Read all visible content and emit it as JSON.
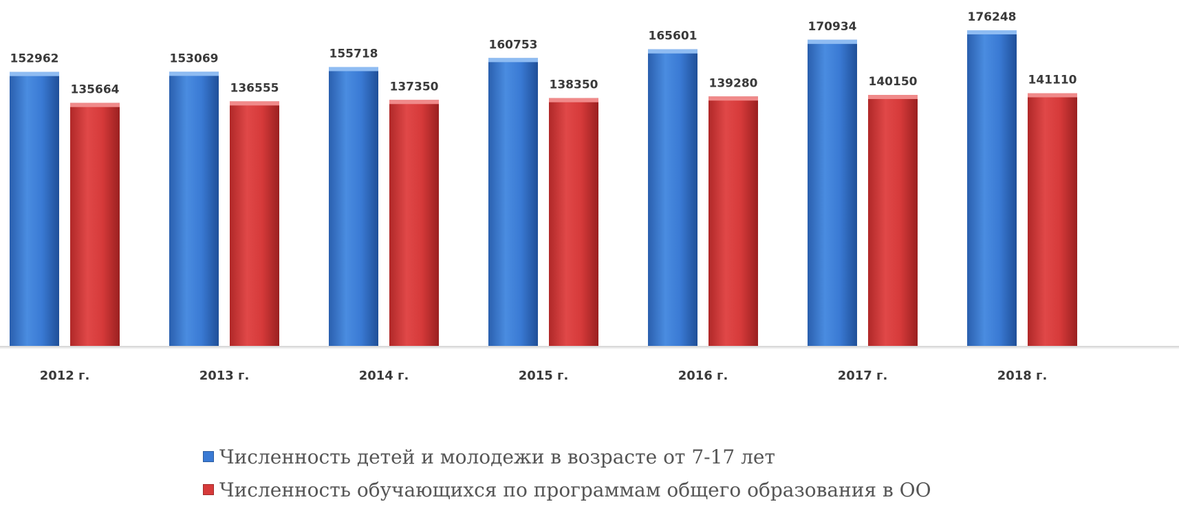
{
  "chart_data": {
    "type": "bar",
    "categories": [
      "2012 г.",
      "2013 г.",
      "2014 г.",
      "2015 г.",
      "2016 г.",
      "2017 г.",
      "2018 г."
    ],
    "series": [
      {
        "name": "Численность детей и молодежи в возрасте от 7-17 лет",
        "color": "#3a7ad4",
        "values": [
          152962,
          153069,
          155718,
          160753,
          165601,
          170934,
          176248
        ]
      },
      {
        "name": "Численность обучающихся по программам общего образования в ОО",
        "color": "#d63a3a",
        "values": [
          135664,
          136555,
          137350,
          138350,
          139280,
          140150,
          141110
        ]
      }
    ],
    "ylim": [
      0,
      176248
    ],
    "grid": false,
    "legend_position": "bottom",
    "data_labels": true
  }
}
